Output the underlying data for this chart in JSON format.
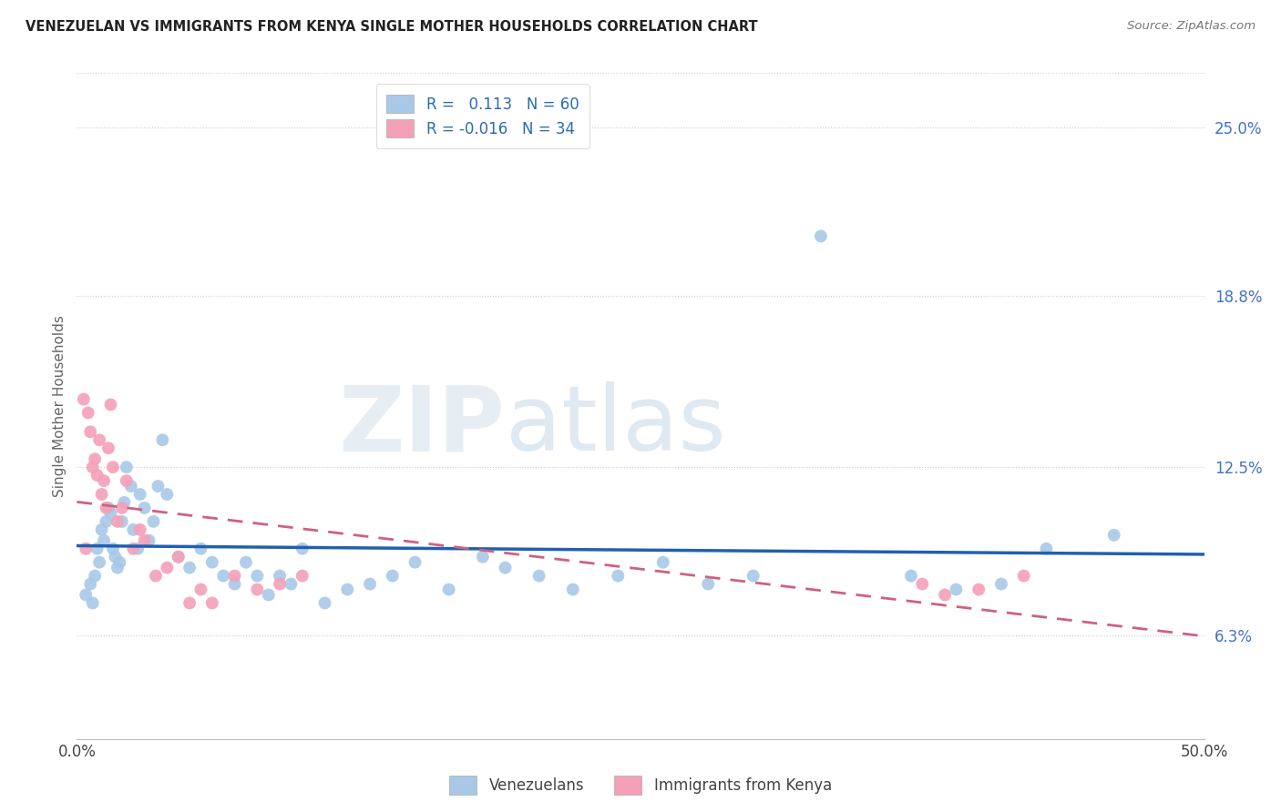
{
  "title": "VENEZUELAN VS IMMIGRANTS FROM KENYA SINGLE MOTHER HOUSEHOLDS CORRELATION CHART",
  "source": "Source: ZipAtlas.com",
  "ylabel": "Single Mother Households",
  "ytick_values": [
    6.3,
    12.5,
    18.8,
    25.0
  ],
  "xlim": [
    0.0,
    50.0
  ],
  "ylim": [
    2.5,
    27.0
  ],
  "venezuelan_R": 0.113,
  "venezuelan_N": 60,
  "kenya_R": -0.016,
  "kenya_N": 34,
  "venezuelan_color": "#a8c8e8",
  "kenya_color": "#f4a0b8",
  "venezuelan_line_color": "#2060b0",
  "kenya_line_color": "#d06080",
  "venezuelan_x": [
    0.4,
    0.6,
    0.7,
    0.8,
    0.9,
    1.0,
    1.1,
    1.2,
    1.3,
    1.4,
    1.5,
    1.6,
    1.7,
    1.8,
    1.9,
    2.0,
    2.1,
    2.2,
    2.4,
    2.5,
    2.7,
    2.8,
    3.0,
    3.2,
    3.4,
    3.6,
    3.8,
    4.0,
    4.5,
    5.0,
    5.5,
    6.0,
    6.5,
    7.0,
    7.5,
    8.0,
    8.5,
    9.0,
    9.5,
    10.0,
    11.0,
    12.0,
    13.0,
    14.0,
    15.0,
    16.5,
    18.0,
    19.0,
    20.5,
    22.0,
    24.0,
    26.0,
    28.0,
    30.0,
    33.0,
    37.0,
    39.0,
    41.0,
    43.0,
    46.0
  ],
  "venezuelan_y": [
    7.8,
    8.2,
    7.5,
    8.5,
    9.5,
    9.0,
    10.2,
    9.8,
    10.5,
    11.0,
    10.8,
    9.5,
    9.2,
    8.8,
    9.0,
    10.5,
    11.2,
    12.5,
    11.8,
    10.2,
    9.5,
    11.5,
    11.0,
    9.8,
    10.5,
    11.8,
    13.5,
    11.5,
    9.2,
    8.8,
    9.5,
    9.0,
    8.5,
    8.2,
    9.0,
    8.5,
    7.8,
    8.5,
    8.2,
    9.5,
    7.5,
    8.0,
    8.2,
    8.5,
    9.0,
    8.0,
    9.2,
    8.8,
    8.5,
    8.0,
    8.5,
    9.0,
    8.2,
    8.5,
    21.0,
    8.5,
    8.0,
    8.2,
    9.5,
    10.0
  ],
  "kenya_x": [
    0.3,
    0.4,
    0.5,
    0.6,
    0.7,
    0.8,
    0.9,
    1.0,
    1.1,
    1.2,
    1.3,
    1.4,
    1.5,
    1.6,
    1.8,
    2.0,
    2.2,
    2.5,
    2.8,
    3.0,
    3.5,
    4.0,
    4.5,
    5.0,
    5.5,
    6.0,
    7.0,
    8.0,
    9.0,
    10.0,
    37.5,
    38.5,
    40.0,
    42.0
  ],
  "kenya_y": [
    15.0,
    9.5,
    14.5,
    13.8,
    12.5,
    12.8,
    12.2,
    13.5,
    11.5,
    12.0,
    11.0,
    13.2,
    14.8,
    12.5,
    10.5,
    11.0,
    12.0,
    9.5,
    10.2,
    9.8,
    8.5,
    8.8,
    9.2,
    7.5,
    8.0,
    7.5,
    8.5,
    8.0,
    8.2,
    8.5,
    8.2,
    7.8,
    8.0,
    8.5
  ]
}
